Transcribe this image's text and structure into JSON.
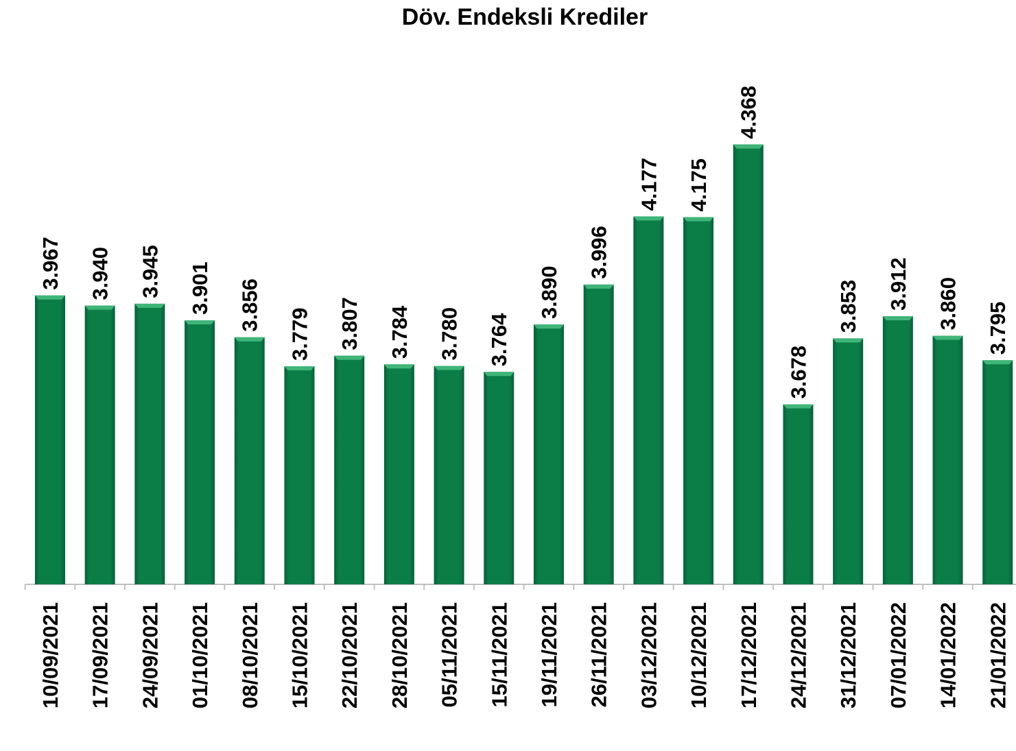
{
  "chart_data": {
    "type": "bar",
    "title": "Döv. Endeksli Krediler",
    "categories": [
      "10/09/2021",
      "17/09/2021",
      "24/09/2021",
      "01/10/2021",
      "08/10/2021",
      "15/10/2021",
      "22/10/2021",
      "28/10/2021",
      "05/11/2021",
      "15/11/2021",
      "19/11/2021",
      "26/11/2021",
      "03/12/2021",
      "10/12/2021",
      "17/12/2021",
      "24/12/2021",
      "31/12/2021",
      "07/01/2022",
      "14/01/2022",
      "21/01/2022"
    ],
    "values": [
      3967,
      3940,
      3945,
      3901,
      3856,
      3779,
      3807,
      3784,
      3780,
      3764,
      3890,
      3996,
      4177,
      4175,
      4368,
      3678,
      3853,
      3912,
      3860,
      3795
    ],
    "value_labels": [
      "3.967",
      "3.940",
      "3.945",
      "3.901",
      "3.856",
      "3.779",
      "3.807",
      "3.784",
      "3.780",
      "3.764",
      "3.890",
      "3.996",
      "4.177",
      "4.175",
      "4.368",
      "3.678",
      "3.853",
      "3.912",
      "3.860",
      "3.795"
    ],
    "color": "#0b7d47",
    "ylim": [
      3200,
      4400
    ]
  }
}
